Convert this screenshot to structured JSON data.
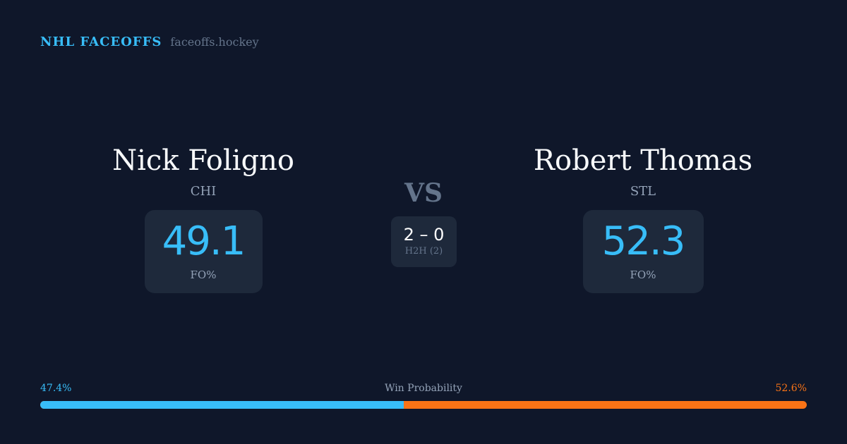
{
  "brand": {
    "name": "NHL FACEOFFS",
    "site": "faceoffs.hockey"
  },
  "players": [
    {
      "name": "Nick Foligno",
      "team": "CHI",
      "fo_pct": "49.1",
      "fo_label": "FO%"
    },
    {
      "name": "Robert Thomas",
      "team": "STL",
      "fo_pct": "52.3",
      "fo_label": "FO%"
    }
  ],
  "vs": "VS",
  "h2h": {
    "score": "2 – 0",
    "label": "H2H (2)"
  },
  "win_probability": {
    "title": "Win Probability",
    "left_label": "47.4%",
    "right_label": "52.6%",
    "left_value": 47.4,
    "right_value": 52.6,
    "left_color": "#38bdf8",
    "right_color": "#f97316"
  }
}
